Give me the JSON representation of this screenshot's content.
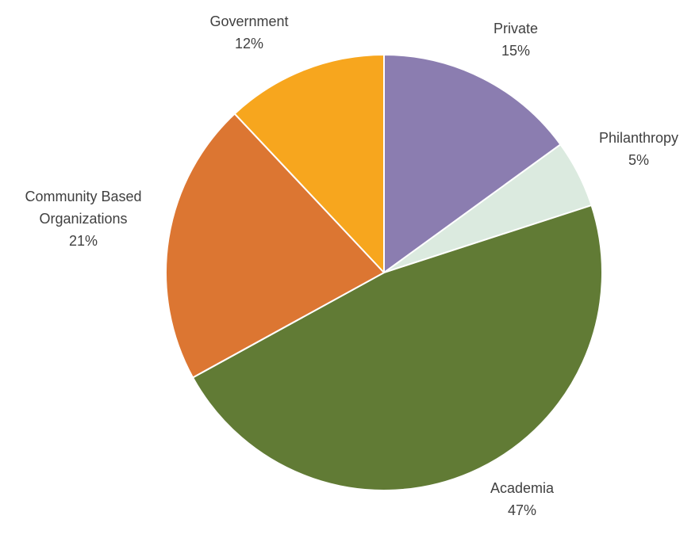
{
  "chart_data": {
    "type": "pie",
    "title": "",
    "slices": [
      {
        "name": "Private",
        "label_lines": [
          "Private"
        ],
        "value": 15,
        "value_label": "15%",
        "color": "#8b7db0"
      },
      {
        "name": "Philanthropy",
        "label_lines": [
          "Philanthropy"
        ],
        "value": 5,
        "value_label": "5%",
        "color": "#dbeadf"
      },
      {
        "name": "Academia",
        "label_lines": [
          "Academia"
        ],
        "value": 47,
        "value_label": "47%",
        "color": "#617b35"
      },
      {
        "name": "Community Based Organizations",
        "label_lines": [
          "Community Based",
          "Organizations"
        ],
        "value": 21,
        "value_label": "21%",
        "color": "#dc7632"
      },
      {
        "name": "Government",
        "label_lines": [
          "Government"
        ],
        "value": 12,
        "value_label": "12%",
        "color": "#f7a61e"
      }
    ],
    "start_angle": "12 o'clock",
    "direction": "clockwise",
    "legend": "none",
    "labels": "outside"
  }
}
